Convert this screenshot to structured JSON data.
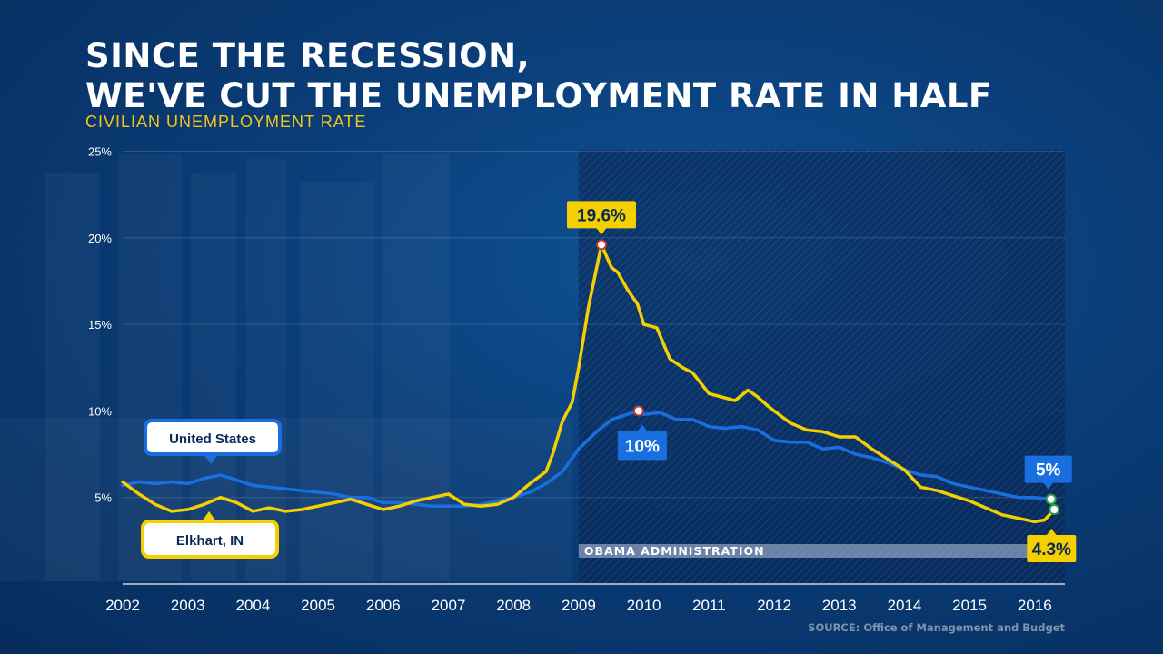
{
  "header": {
    "title_line1": "SINCE THE RECESSION,",
    "title_line2": "WE'VE CUT THE UNEMPLOYMENT RATE IN HALF",
    "subtitle": "CIVILIAN UNEMPLOYMENT RATE"
  },
  "source": "SOURCE: Office of Management and Budget",
  "colors": {
    "background": "#0a3d78",
    "us_line": "#1a6fe0",
    "elkhart_line": "#f5d000",
    "accent_yellow": "#f5c518"
  },
  "chart_data": {
    "type": "line",
    "title": "SINCE THE RECESSION, WE'VE CUT THE UNEMPLOYMENT RATE IN HALF",
    "subtitle": "CIVILIAN UNEMPLOYMENT RATE",
    "xlim": [
      2002,
      2016.5
    ],
    "ylim": [
      0,
      25
    ],
    "x_ticks": [
      "2002",
      "2003",
      "2004",
      "2005",
      "2006",
      "2007",
      "2008",
      "2009",
      "2010",
      "2011",
      "2012",
      "2013",
      "2014",
      "2015",
      "2016"
    ],
    "y_ticks": [
      "25%",
      "20%",
      "15%",
      "10%",
      "5%"
    ],
    "grid": "horizontal",
    "shaded_region": {
      "label": "OBAMA ADMINISTRATION",
      "from": 2009.0,
      "to": 2016.5
    },
    "series": [
      {
        "name": "United States",
        "color": "#1a6fe0",
        "x": [
          2002.0,
          2002.25,
          2002.5,
          2002.75,
          2003.0,
          2003.25,
          2003.5,
          2003.75,
          2004.0,
          2004.25,
          2004.5,
          2004.75,
          2005.0,
          2005.25,
          2005.5,
          2005.75,
          2006.0,
          2006.25,
          2006.5,
          2006.75,
          2007.0,
          2007.25,
          2007.5,
          2007.75,
          2008.0,
          2008.25,
          2008.5,
          2008.75,
          2009.0,
          2009.25,
          2009.5,
          2009.75,
          2009.92,
          2010.0,
          2010.25,
          2010.5,
          2010.75,
          2011.0,
          2011.25,
          2011.5,
          2011.75,
          2012.0,
          2012.25,
          2012.5,
          2012.75,
          2013.0,
          2013.25,
          2013.5,
          2013.75,
          2014.0,
          2014.25,
          2014.5,
          2014.75,
          2015.0,
          2015.25,
          2015.5,
          2015.75,
          2016.0,
          2016.25
        ],
        "values": [
          5.7,
          5.9,
          5.8,
          5.9,
          5.8,
          6.1,
          6.3,
          6.0,
          5.7,
          5.6,
          5.5,
          5.4,
          5.3,
          5.2,
          5.0,
          5.0,
          4.7,
          4.7,
          4.6,
          4.5,
          4.5,
          4.5,
          4.6,
          4.8,
          5.0,
          5.3,
          5.8,
          6.5,
          7.8,
          8.7,
          9.5,
          9.8,
          10.0,
          9.8,
          9.9,
          9.5,
          9.5,
          9.1,
          9.0,
          9.1,
          8.9,
          8.3,
          8.2,
          8.2,
          7.8,
          7.9,
          7.5,
          7.3,
          7.0,
          6.6,
          6.3,
          6.2,
          5.8,
          5.6,
          5.4,
          5.2,
          5.0,
          5.0,
          4.9
        ]
      },
      {
        "name": "Elkhart, IN",
        "color": "#f5d000",
        "x": [
          2002.0,
          2002.25,
          2002.5,
          2002.75,
          2003.0,
          2003.25,
          2003.5,
          2003.75,
          2004.0,
          2004.25,
          2004.5,
          2004.75,
          2005.0,
          2005.25,
          2005.5,
          2005.75,
          2006.0,
          2006.25,
          2006.5,
          2006.75,
          2007.0,
          2007.25,
          2007.5,
          2007.75,
          2008.0,
          2008.25,
          2008.5,
          2008.6,
          2008.75,
          2008.9,
          2009.0,
          2009.15,
          2009.35,
          2009.5,
          2009.6,
          2009.75,
          2009.9,
          2010.0,
          2010.2,
          2010.4,
          2010.6,
          2010.75,
          2011.0,
          2011.2,
          2011.4,
          2011.6,
          2011.75,
          2011.9,
          2012.0,
          2012.25,
          2012.5,
          2012.75,
          2013.0,
          2013.25,
          2013.5,
          2013.75,
          2014.0,
          2014.25,
          2014.5,
          2014.75,
          2015.0,
          2015.25,
          2015.5,
          2015.75,
          2016.0,
          2016.15,
          2016.3
        ],
        "values": [
          5.9,
          5.2,
          4.6,
          4.2,
          4.3,
          4.6,
          5.0,
          4.7,
          4.2,
          4.4,
          4.2,
          4.3,
          4.5,
          4.7,
          4.9,
          4.6,
          4.3,
          4.5,
          4.8,
          5.0,
          5.2,
          4.6,
          4.5,
          4.6,
          5.0,
          5.8,
          6.5,
          7.5,
          9.4,
          10.5,
          12.5,
          16.0,
          19.6,
          18.3,
          18.0,
          17.0,
          16.2,
          15.0,
          14.8,
          13.0,
          12.5,
          12.2,
          11.0,
          10.8,
          10.6,
          11.2,
          10.8,
          10.3,
          10.0,
          9.3,
          8.9,
          8.8,
          8.5,
          8.5,
          7.8,
          7.2,
          6.6,
          5.6,
          5.4,
          5.1,
          4.8,
          4.4,
          4.0,
          3.8,
          3.6,
          3.7,
          4.3
        ]
      }
    ],
    "annotations": [
      {
        "text": "19.6%",
        "series": "Elkhart, IN",
        "x": 2009.35,
        "y": 19.6
      },
      {
        "text": "10%",
        "series": "United States",
        "x": 2009.92,
        "y": 10.0
      },
      {
        "text": "5%",
        "series": "United States",
        "x": 2016.25,
        "y": 4.9
      },
      {
        "text": "4.3%",
        "series": "Elkhart, IN",
        "x": 2016.3,
        "y": 4.3
      }
    ],
    "legend": [
      {
        "label": "United States",
        "placement": "upper-left"
      },
      {
        "label": "Elkhart, IN",
        "placement": "lower-left"
      }
    ]
  }
}
